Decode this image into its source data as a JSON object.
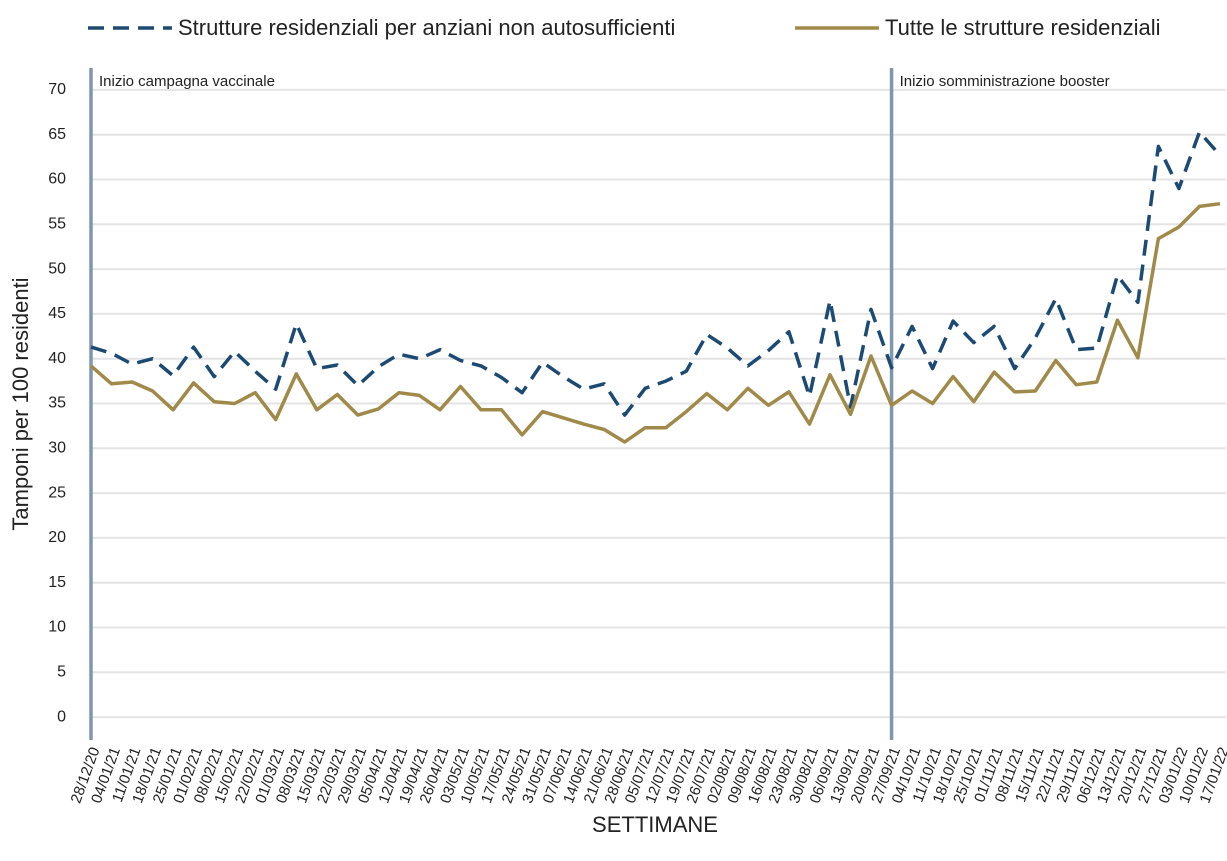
{
  "chart_data": {
    "type": "line",
    "y_label": "Tamponi per 100 residenti",
    "x_label": "SETTIMANE",
    "categories": [
      "28/12/20",
      "04/01/21",
      "11/01/21",
      "18/01/21",
      "25/01/21",
      "01/02/21",
      "08/02/21",
      "15/02/21",
      "22/02/21",
      "01/03/21",
      "08/03/21",
      "15/03/21",
      "22/03/21",
      "29/03/21",
      "05/04/21",
      "12/04/21",
      "19/04/21",
      "26/04/21",
      "03/05/21",
      "10/05/21",
      "17/05/21",
      "24/05/21",
      "31/05/21",
      "07/06/21",
      "14/06/21",
      "21/06/21",
      "28/06/21",
      "05/07/21",
      "12/07/21",
      "19/07/21",
      "26/07/21",
      "02/08/21",
      "09/08/21",
      "16/08/21",
      "23/08/21",
      "30/08/21",
      "06/09/21",
      "13/09/21",
      "20/09/21",
      "27/09/21",
      "04/10/21",
      "11/10/21",
      "18/10/21",
      "25/10/21",
      "01/11/21",
      "08/11/21",
      "15/11/21",
      "22/11/21",
      "29/11/21",
      "06/12/21",
      "13/12/21",
      "20/12/21",
      "27/12/21",
      "03/01/22",
      "10/01/22",
      "17/01/22"
    ],
    "series": [
      {
        "name": "Strutture residenziali per anziani non autosufficienti",
        "color": "#1d4a72",
        "dash": true,
        "values": [
          41.3,
          40.6,
          39.4,
          40.0,
          38.1,
          41.3,
          38.0,
          40.8,
          38.6,
          36.6,
          43.9,
          38.9,
          39.3,
          37.0,
          39.1,
          40.5,
          40.0,
          41.0,
          39.8,
          39.2,
          37.9,
          36.2,
          39.6,
          38.0,
          36.6,
          37.2,
          33.7,
          36.7,
          37.5,
          38.6,
          42.7,
          41.2,
          39.2,
          40.9,
          43.0,
          35.8,
          46.5,
          34.6,
          45.5,
          39.0,
          43.6,
          38.9,
          44.2,
          41.8,
          43.6,
          38.9,
          42.3,
          46.7,
          41.0,
          41.2,
          49.3,
          46.3,
          63.7,
          59.0,
          65.3,
          62.7
        ]
      },
      {
        "name": "Tutte le strutture residenziali",
        "color": "#a08a4a",
        "dash": false,
        "values": [
          39.2,
          37.2,
          37.4,
          36.4,
          34.3,
          37.3,
          35.2,
          35.0,
          36.2,
          33.2,
          38.3,
          34.3,
          36.0,
          33.7,
          34.4,
          36.2,
          35.9,
          34.3,
          36.9,
          34.3,
          34.3,
          31.5,
          34.1,
          33.4,
          32.7,
          32.1,
          30.7,
          32.3,
          32.3,
          34.1,
          36.1,
          34.3,
          36.7,
          34.8,
          36.3,
          32.7,
          38.2,
          33.8,
          40.3,
          34.8,
          36.4,
          35.0,
          38.0,
          35.2,
          38.5,
          36.3,
          36.4,
          39.8,
          37.1,
          37.4,
          44.3,
          40.1,
          53.4,
          54.7,
          57.0,
          57.3
        ]
      }
    ],
    "annotations": [
      {
        "text": "Inizio campagna vaccinale",
        "at": "28/12/20"
      },
      {
        "text": "Inizio somministrazione booster",
        "at": "27/09/21"
      }
    ],
    "ylim": [
      -2,
      72
    ],
    "yticks": [
      0,
      5,
      10,
      15,
      20,
      25,
      30,
      35,
      40,
      45,
      50,
      55,
      60,
      65,
      70
    ],
    "grid": true,
    "legend": "top"
  }
}
